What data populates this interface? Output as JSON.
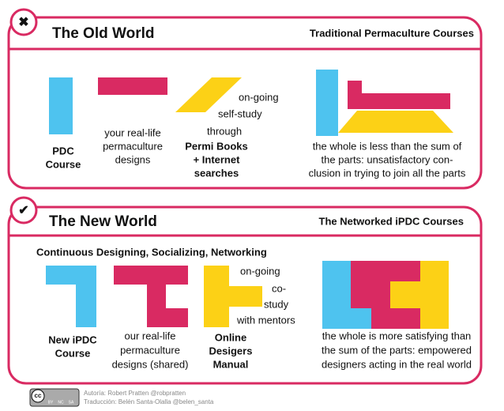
{
  "panels": [
    {
      "icon": "✖",
      "title": "The Old World",
      "subtitle": "Traditional Permaculture Courses",
      "items": [
        {
          "lines": [
            "PDC",
            "Course"
          ]
        },
        {
          "lines": [
            "your real-life",
            "permaculture",
            "designs"
          ]
        },
        {
          "lines": [
            "on-going",
            "self-study",
            "through"
          ],
          "bold_lines": [
            "Permi Books",
            "+ Internet",
            "searches"
          ]
        },
        {
          "lines": [
            "the whole is less than the sum of",
            "the parts: unsatisfactory con-",
            "clusion in trying to join all the parts"
          ]
        }
      ]
    },
    {
      "icon": "✔",
      "title": "The New World",
      "subtitle": "The Networked iPDC Courses",
      "heading": "Continuous Designing, Socializing, Networking",
      "items": [
        {
          "lines": [
            "New iPDC",
            "Course"
          ]
        },
        {
          "lines": [
            "our real-life",
            "permaculture",
            "designs (shared)"
          ]
        },
        {
          "lines": [
            "on-going",
            "co-",
            "study",
            "with mentors"
          ],
          "bold_lines": [
            "Online",
            "Desigers",
            "Manual"
          ]
        },
        {
          "lines": [
            "the whole is more satisfying than",
            "the sum of the parts: empowered",
            "designers acting in the real world"
          ]
        }
      ]
    }
  ],
  "footer": {
    "badge": [
      "cc",
      "BY",
      "NC",
      "SA"
    ],
    "credits": [
      "Autoría: Robert Pratten @robpratten",
      "Traducción: Belén Santa-Olalla @belen_santa"
    ]
  }
}
